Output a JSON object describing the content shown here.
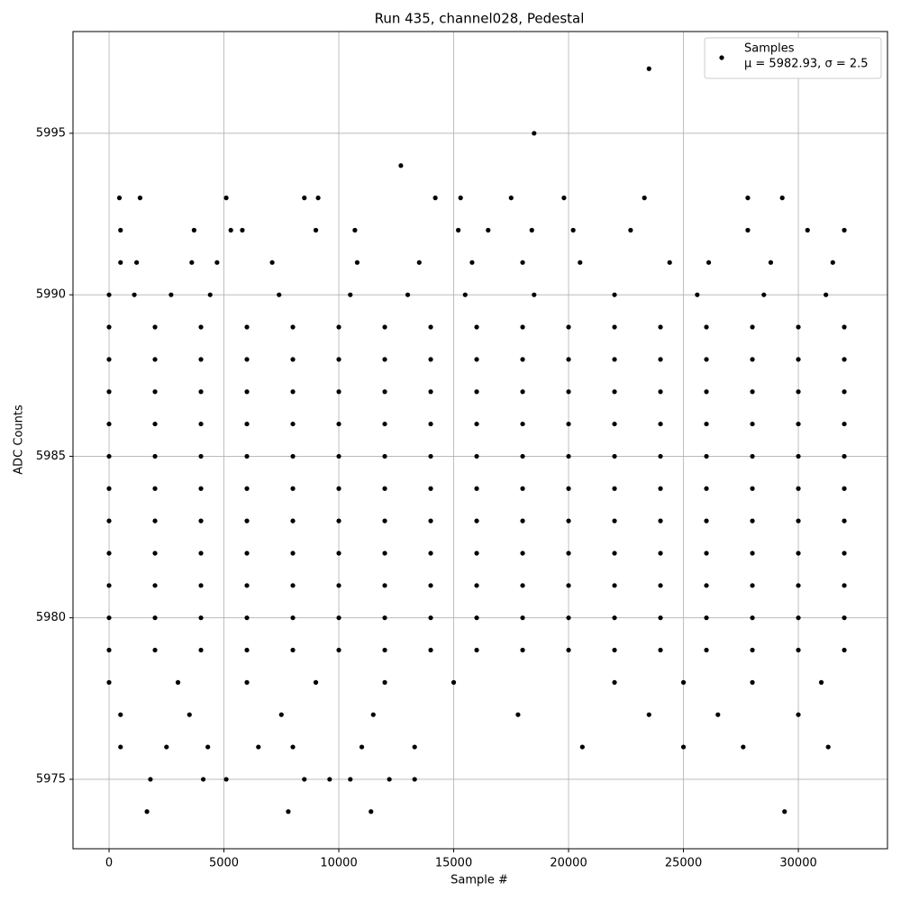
{
  "chart_data": {
    "type": "scatter",
    "title": "Run 435, channel028, Pedestal",
    "x_label": "Sample #",
    "y_label": "ADC Counts",
    "xlim": [
      -1570,
      33880
    ],
    "ylim": [
      5972.85,
      5998.15
    ],
    "xticks": [
      0,
      5000,
      10000,
      15000,
      20000,
      25000,
      30000
    ],
    "yticks": [
      5975,
      5980,
      5985,
      5990,
      5995
    ],
    "grid": true,
    "legend_position": "upper right",
    "series": [
      {
        "name": "Samples",
        "stats_label": "μ = 5982.93, σ = 2.5",
        "color": "#000000",
        "x": [
          0,
          2000,
          4000,
          6000,
          8000,
          10000,
          12000,
          14000,
          16000,
          18000,
          20000,
          22000,
          24000,
          26000,
          28000,
          30000,
          32000,
          0,
          2000,
          4000,
          6000,
          8000,
          10000,
          12000,
          14000,
          16000,
          18000,
          20000,
          22000,
          24000,
          26000,
          28000,
          30000,
          32000,
          0,
          2000,
          4000,
          6000,
          8000,
          10000,
          12000,
          14000,
          16000,
          18000,
          20000,
          22000,
          24000,
          26000,
          28000,
          30000,
          32000,
          0,
          2000,
          4000,
          6000,
          8000,
          10000,
          12000,
          14000,
          16000,
          18000,
          20000,
          22000,
          24000,
          26000,
          28000,
          30000,
          32000,
          0,
          2000,
          4000,
          6000,
          8000,
          10000,
          12000,
          14000,
          16000,
          18000,
          20000,
          22000,
          24000,
          26000,
          28000,
          30000,
          32000,
          0,
          2000,
          4000,
          6000,
          8000,
          10000,
          12000,
          14000,
          16000,
          18000,
          20000,
          22000,
          24000,
          26000,
          28000,
          30000,
          32000,
          0,
          2000,
          4000,
          6000,
          8000,
          10000,
          12000,
          14000,
          16000,
          18000,
          20000,
          22000,
          24000,
          26000,
          28000,
          30000,
          32000,
          0,
          2000,
          4000,
          6000,
          8000,
          10000,
          12000,
          14000,
          16000,
          18000,
          20000,
          22000,
          24000,
          26000,
          28000,
          30000,
          32000,
          0,
          2000,
          4000,
          6000,
          8000,
          10000,
          12000,
          14000,
          16000,
          18000,
          20000,
          22000,
          24000,
          26000,
          28000,
          30000,
          32000,
          0,
          2000,
          4000,
          6000,
          8000,
          10000,
          12000,
          14000,
          16000,
          18000,
          20000,
          22000,
          24000,
          26000,
          28000,
          30000,
          32000,
          0,
          2000,
          4000,
          6000,
          8000,
          10000,
          12000,
          14000,
          16000,
          18000,
          20000,
          22000,
          24000,
          26000,
          28000,
          30000,
          32000,
          0,
          3000,
          6000,
          9000,
          12000,
          15000,
          22000,
          25000,
          28000,
          31000,
          500,
          3500,
          7500,
          11500,
          17800,
          23500,
          26500,
          30000,
          500,
          2500,
          4300,
          6500,
          8000,
          11000,
          13300,
          20600,
          25000,
          27600,
          31300,
          1800,
          4100,
          5100,
          8500,
          9600,
          10500,
          12200,
          13300,
          1650,
          7800,
          11400,
          29400,
          0,
          1100,
          2700,
          4400,
          7400,
          10500,
          13000,
          15500,
          18500,
          22000,
          25600,
          28500,
          31200,
          500,
          1200,
          3600,
          4700,
          7100,
          10800,
          13500,
          15800,
          18000,
          20500,
          24400,
          26100,
          28800,
          31500,
          500,
          3700,
          5300,
          5800,
          9000,
          10700,
          15200,
          16500,
          18400,
          20200,
          22700,
          27800,
          30400,
          32000,
          450,
          1350,
          5100,
          8500,
          9100,
          14200,
          15300,
          17500,
          19800,
          23300,
          27800,
          29300,
          12700,
          18500,
          23500
        ],
        "values": [
          5979,
          5979,
          5979,
          5979,
          5979,
          5979,
          5979,
          5979,
          5979,
          5979,
          5979,
          5979,
          5979,
          5979,
          5979,
          5979,
          5979,
          5980,
          5980,
          5980,
          5980,
          5980,
          5980,
          5980,
          5980,
          5980,
          5980,
          5980,
          5980,
          5980,
          5980,
          5980,
          5980,
          5980,
          5981,
          5981,
          5981,
          5981,
          5981,
          5981,
          5981,
          5981,
          5981,
          5981,
          5981,
          5981,
          5981,
          5981,
          5981,
          5981,
          5981,
          5982,
          5982,
          5982,
          5982,
          5982,
          5982,
          5982,
          5982,
          5982,
          5982,
          5982,
          5982,
          5982,
          5982,
          5982,
          5982,
          5982,
          5983,
          5983,
          5983,
          5983,
          5983,
          5983,
          5983,
          5983,
          5983,
          5983,
          5983,
          5983,
          5983,
          5983,
          5983,
          5983,
          5983,
          5984,
          5984,
          5984,
          5984,
          5984,
          5984,
          5984,
          5984,
          5984,
          5984,
          5984,
          5984,
          5984,
          5984,
          5984,
          5984,
          5984,
          5985,
          5985,
          5985,
          5985,
          5985,
          5985,
          5985,
          5985,
          5985,
          5985,
          5985,
          5985,
          5985,
          5985,
          5985,
          5985,
          5985,
          5986,
          5986,
          5986,
          5986,
          5986,
          5986,
          5986,
          5986,
          5986,
          5986,
          5986,
          5986,
          5986,
          5986,
          5986,
          5986,
          5986,
          5987,
          5987,
          5987,
          5987,
          5987,
          5987,
          5987,
          5987,
          5987,
          5987,
          5987,
          5987,
          5987,
          5987,
          5987,
          5987,
          5987,
          5988,
          5988,
          5988,
          5988,
          5988,
          5988,
          5988,
          5988,
          5988,
          5988,
          5988,
          5988,
          5988,
          5988,
          5988,
          5988,
          5988,
          5989,
          5989,
          5989,
          5989,
          5989,
          5989,
          5989,
          5989,
          5989,
          5989,
          5989,
          5989,
          5989,
          5989,
          5989,
          5989,
          5989,
          5978,
          5978,
          5978,
          5978,
          5978,
          5978,
          5978,
          5978,
          5978,
          5978,
          5977,
          5977,
          5977,
          5977,
          5977,
          5977,
          5977,
          5977,
          5976,
          5976,
          5976,
          5976,
          5976,
          5976,
          5976,
          5976,
          5976,
          5976,
          5976,
          5975,
          5975,
          5975,
          5975,
          5975,
          5975,
          5975,
          5975,
          5974,
          5974,
          5974,
          5974,
          5990,
          5990,
          5990,
          5990,
          5990,
          5990,
          5990,
          5990,
          5990,
          5990,
          5990,
          5990,
          5990,
          5991,
          5991,
          5991,
          5991,
          5991,
          5991,
          5991,
          5991,
          5991,
          5991,
          5991,
          5991,
          5991,
          5991,
          5992,
          5992,
          5992,
          5992,
          5992,
          5992,
          5992,
          5992,
          5992,
          5992,
          5992,
          5992,
          5992,
          5992,
          5993,
          5993,
          5993,
          5993,
          5993,
          5993,
          5993,
          5993,
          5993,
          5993,
          5993,
          5993,
          5994,
          5995,
          5997
        ]
      }
    ]
  }
}
